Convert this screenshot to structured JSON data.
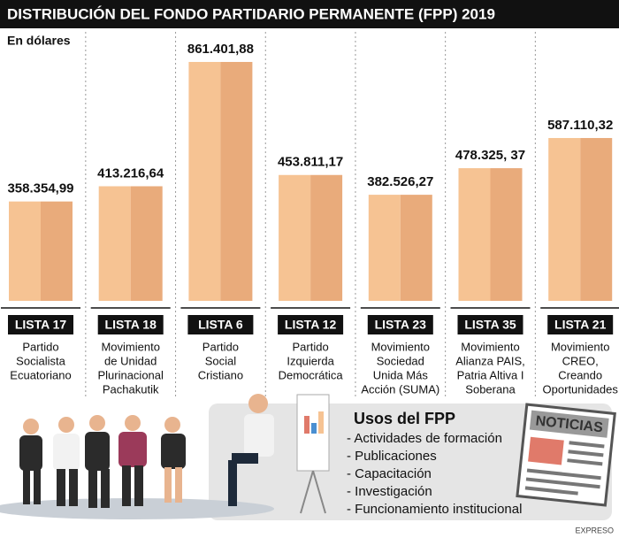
{
  "chart_data": {
    "type": "bar",
    "title": "DISTRIBUCIÓN DEL FONDO PARTIDARIO PERMANENTE (FPP) 2019",
    "subtitle": "En dólares",
    "categories": [
      "LISTA 17",
      "LISTA 18",
      "LISTA 6",
      "LISTA 12",
      "LISTA 23",
      "LISTA 35",
      "LISTA 21"
    ],
    "descriptions": [
      [
        "Partido",
        "Socialista",
        "Ecuatoriano"
      ],
      [
        "Movimiento",
        "de Unidad",
        "Plurinacional",
        "Pachakutik"
      ],
      [
        "Partido",
        "Social",
        "Cristiano"
      ],
      [
        "Partido",
        "Izquierda",
        "Democrática"
      ],
      [
        "Movimiento",
        "Sociedad",
        "Unida Más",
        "Acción (SUMA)"
      ],
      [
        "Movimiento",
        "Alianza PAIS,",
        "Patria Altiva I",
        "Soberana"
      ],
      [
        "Movimiento",
        "CREO,",
        "Creando",
        "Oportunidades"
      ]
    ],
    "values": [
      358354.99,
      413216.64,
      861401.88,
      453811.17,
      382526.27,
      478325.37,
      587110.32
    ],
    "value_labels": [
      "358.354,99",
      "413.216,64",
      "861.401,88",
      "453.811,17",
      "382.526,27",
      "478.325, 37",
      "587.110,32"
    ],
    "colors": [
      "#f6c393",
      "#e9ab7b"
    ]
  },
  "panel": {
    "title": "Usos del FPP",
    "items": [
      "- Actividades de formación",
      "- Publicaciones",
      "- Capacitación",
      "- Investigación",
      "- Funcionamiento institucional"
    ]
  },
  "newspaper": "NOTICIAS",
  "credit": "EXPRESO"
}
